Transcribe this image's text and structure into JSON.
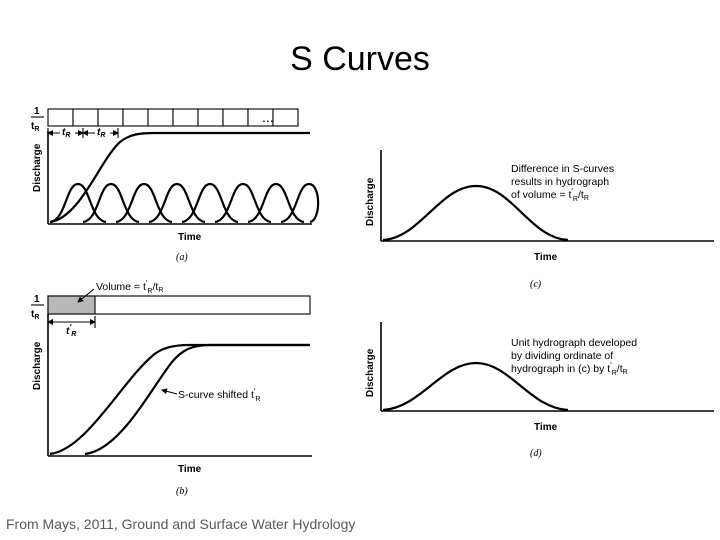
{
  "slide": {
    "title": "S Curves",
    "credit": "From Mays, 2011, Ground and Surface Water Hydrology"
  },
  "panel_a": {
    "caption": "(a)",
    "ylabel": "Discharge",
    "xlabel": "Time",
    "rate_label": "1",
    "rate_den": "t",
    "rate_den_sub": "R",
    "interval_label": "t",
    "interval_sub": "R",
    "ellipsis": "...",
    "pulse_count": 8
  },
  "panel_b": {
    "caption": "(b)",
    "ylabel": "Discharge",
    "xlabel": "Time",
    "rate_label": "1",
    "rate_den": "t",
    "rate_den_sub": "R",
    "volume_label": "Volume = t",
    "volume_sup": "′",
    "volume_sub": "R",
    "volume_tail": "/t",
    "volume_tail_sub": "R",
    "shift_label": "t",
    "shift_sup": "′",
    "shift_sub": "R",
    "curve_label": "S-curve shifted t",
    "curve_sup": "′",
    "curve_sub": "R"
  },
  "panel_c": {
    "caption": "(c)",
    "ylabel": "Discharge",
    "xlabel": "Time",
    "note_lines": [
      "Difference in S-curves",
      "results in hydrograph"
    ],
    "note_line3": "of volume = t",
    "note_sup": "′",
    "note_sub": "R",
    "note_tail": "/t",
    "note_tail_sub": "R"
  },
  "panel_d": {
    "caption": "(d)",
    "ylabel": "Discharge",
    "xlabel": "Time",
    "note_lines": [
      "Unit hydrograph developed",
      "by dividing ordinate of"
    ],
    "note_line3": "hydrograph in (c) by t",
    "note_sup": "′",
    "note_sub": "R",
    "note_tail": "/t",
    "note_tail_sub": "R"
  },
  "colors": {
    "ink": "#000000",
    "shade": "#b8b8b8",
    "credit": "#595959"
  }
}
